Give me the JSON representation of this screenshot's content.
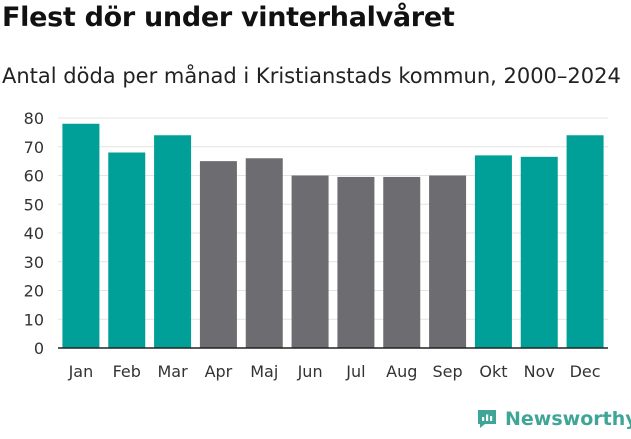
{
  "chart_data": {
    "type": "bar",
    "title": "Flest dör under vinterhalvåret",
    "subtitle": "Antal döda per månad i Kristianstads kommun, 2000–2024",
    "categories": [
      "Jan",
      "Feb",
      "Mar",
      "Apr",
      "Maj",
      "Jun",
      "Jul",
      "Aug",
      "Sep",
      "Okt",
      "Nov",
      "Dec"
    ],
    "values": [
      78,
      68,
      74,
      65,
      66,
      60,
      59.5,
      59.5,
      60,
      67,
      66.5,
      74
    ],
    "highlight": [
      true,
      true,
      true,
      false,
      false,
      false,
      false,
      false,
      false,
      true,
      true,
      true
    ],
    "yticks": [
      0,
      10,
      20,
      30,
      40,
      50,
      60,
      70,
      80
    ],
    "ylim": [
      0,
      80
    ],
    "xlabel": "",
    "ylabel": "",
    "grid": true,
    "colors": {
      "winter": "#00a099",
      "summer": "#6d6c71",
      "grid": "#e4e4e4",
      "axis": "#222222"
    }
  },
  "brand": {
    "name": "Newsworthy",
    "icon": "newsworthy-logo-icon",
    "color": "#3fa597"
  }
}
